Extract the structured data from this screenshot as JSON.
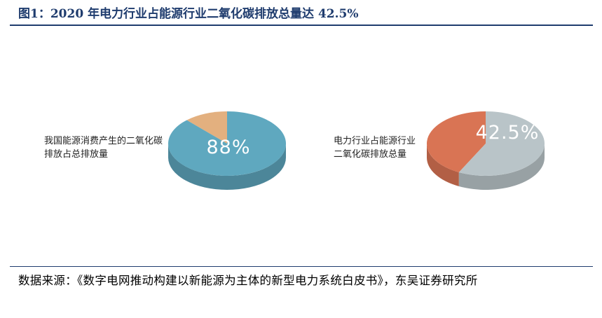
{
  "title": "图1：2020 年电力行业占能源行业二氧化碳排放总量达 42.5%",
  "source": "数据来源：《数字电网推动构建以新能源为主体的新型电力系统白皮书》，东吴证券研究所",
  "colors": {
    "left_main": "#5fa8bf",
    "left_rest": "#e3b07f",
    "right_main": "#d97454",
    "right_rest": "#b9c4c8",
    "title_blue": "#1f3c6e"
  },
  "chart_data": [
    {
      "type": "pie",
      "legend_lines": [
        "我国能源消费产生的二氧化碳",
        "排放占总排放量"
      ],
      "value_label": "88%",
      "values": [
        88,
        12
      ]
    },
    {
      "type": "pie",
      "legend_lines": [
        "电力行业占能源行业",
        "二氧化碳排放总量"
      ],
      "value_label": "42.5%",
      "values": [
        42.5,
        57.5
      ]
    }
  ]
}
